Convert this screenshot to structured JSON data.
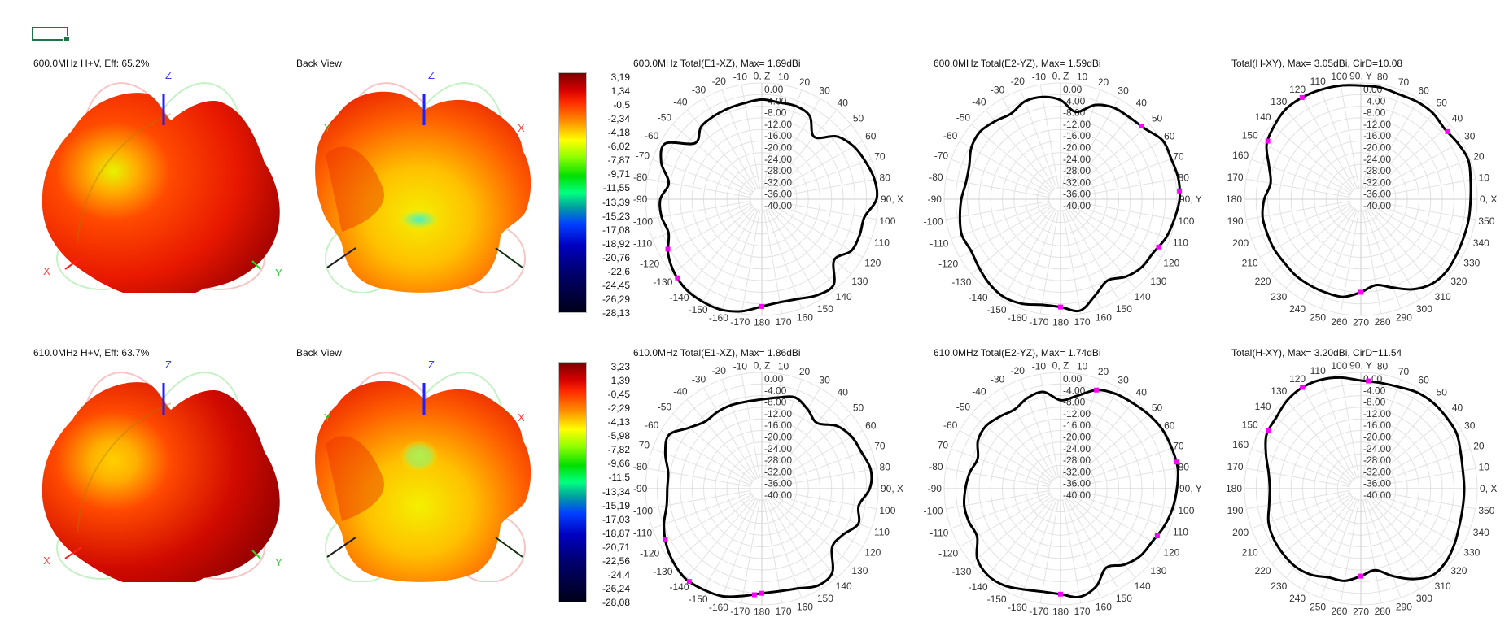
{
  "colors": {
    "curve": "#000000",
    "marker": "#ff00ff",
    "grid": "#e0e0e0",
    "axis_x": "#ff3030",
    "axis_y": "#20d020",
    "axis_z": "#2020ff",
    "selection": "#217346"
  },
  "rows": [
    {
      "view3d": {
        "title": "600.0MHz H+V, Eff: 65.2%",
        "back_title": "Back View",
        "axis_labels": {
          "x": "X",
          "y": "Y",
          "z": "Z"
        }
      },
      "colorbar": {
        "labels": [
          "3,19",
          "1,34",
          "-0,5",
          "-2,34",
          "-4,18",
          "-6,02",
          "-7,87",
          "-9,71",
          "-11,55",
          "-13,39",
          "-15,23",
          "-17,08",
          "-18,92",
          "-20,76",
          "-22,6",
          "-24,45",
          "-26,29",
          "-28,13"
        ]
      }
    },
    {
      "view3d": {
        "title": "610.0MHz H+V, Eff: 63.7%",
        "back_title": "Back View",
        "axis_labels": {
          "x": "X",
          "y": "Y",
          "z": "Z"
        }
      },
      "colorbar": {
        "labels": [
          "3,23",
          "1,39",
          "-0,45",
          "-2,29",
          "-4,13",
          "-5,98",
          "-7,82",
          "-9,66",
          "-11,5",
          "-13,34",
          "-15,19",
          "-17,03",
          "-18,87",
          "-20,71",
          "-22,56",
          "-24,4",
          "-26,24",
          "-28,08"
        ]
      }
    }
  ],
  "chart_data": [
    {
      "type": "line",
      "coordinate_system": "polar",
      "zero_direction": "top",
      "direction": "clockwise",
      "title": "600.0MHz Total(E1-XZ), Max= 1.69dBi",
      "r_range": [
        -40,
        0
      ],
      "r_tick_labels": [
        "0.00",
        "-4.00",
        "-8.00",
        "-12.00",
        "-16.00",
        "-20.00",
        "-24.00",
        "-28.00",
        "-32.00",
        "-36.00",
        "-40.00"
      ],
      "angle_tick_labels": [
        "0, Z",
        "10",
        "20",
        "30",
        "40",
        "50",
        "60",
        "70",
        "80",
        "90, X",
        "100",
        "110",
        "120",
        "130",
        "140",
        "150",
        "160",
        "170",
        "180",
        "-170",
        "-160",
        "-150",
        "-140",
        "-130",
        "-120",
        "-110",
        "-100",
        "-90",
        "-80",
        "-70",
        "-60",
        "-50",
        "-40",
        "-30",
        "-20",
        "-10"
      ],
      "angles": [
        0,
        10,
        20,
        30,
        40,
        50,
        60,
        70,
        80,
        90,
        100,
        110,
        120,
        130,
        140,
        150,
        160,
        170,
        180,
        -170,
        -160,
        -150,
        -140,
        -130,
        -120,
        -110,
        -100,
        -90,
        -80,
        -70,
        -60,
        -50,
        -40,
        -30,
        -20,
        -10
      ],
      "values": [
        -5.7,
        -6.2,
        -5.9,
        -7,
        -12,
        -6.4,
        -3.6,
        -2.1,
        -0.7,
        -0.6,
        -4.2,
        -4.2,
        -4.5,
        -7.5,
        -1.6,
        -1.9,
        -3.5,
        -4,
        -3.1,
        -0.9,
        0.5,
        0.7,
        0.5,
        -0.7,
        -2.8,
        -5.9,
        -5,
        -5.1,
        -7.5,
        -3.2,
        -1.7,
        -10,
        -7.5,
        -7,
        -6.7,
        -6.4
      ],
      "markers": [
        -118,
        -133,
        180
      ],
      "grid": true
    },
    {
      "type": "line",
      "coordinate_system": "polar",
      "zero_direction": "top",
      "direction": "clockwise",
      "title": "600.0MHz Total(E2-YZ), Max= 1.59dBi",
      "r_range": [
        -40,
        0
      ],
      "r_tick_labels": [
        "0.00",
        "-4.00",
        "-8.00",
        "-12.00",
        "-16.00",
        "-20.00",
        "-24.00",
        "-28.00",
        "-32.00",
        "-36.00",
        "-40.00"
      ],
      "angle_tick_labels": [
        "0, Z",
        "10",
        "20",
        "30",
        "40",
        "50",
        "60",
        "70",
        "80",
        "90, Y",
        "100",
        "110",
        "120",
        "130",
        "140",
        "150",
        "160",
        "170",
        "180",
        "-170",
        "-160",
        "-150",
        "-140",
        "-130",
        "-120",
        "-110",
        "-100",
        "-90",
        "-80",
        "-70",
        "-60",
        "-50",
        "-40",
        "-30",
        "-20",
        "-10"
      ],
      "angles": [
        0,
        10,
        20,
        30,
        40,
        50,
        60,
        70,
        80,
        90,
        100,
        110,
        120,
        130,
        140,
        150,
        160,
        170,
        180,
        -170,
        -160,
        -150,
        -140,
        -130,
        -120,
        -110,
        -100,
        -90,
        -80,
        -70,
        -60,
        -50,
        -40,
        -30,
        -20,
        -10
      ],
      "values": [
        -5.9,
        -9.5,
        -5.5,
        -3.6,
        -3.2,
        -2.2,
        0.5,
        0.5,
        1.1,
        0.9,
        -0.3,
        -1.4,
        -3.2,
        -3.6,
        -5.2,
        -7.7,
        -4.9,
        -1.1,
        -2.9,
        -3.1,
        -1.7,
        -1.1,
        -2,
        -3.4,
        -4.5,
        -3.9,
        -4.9,
        -5.9,
        -7,
        -6.6,
        -4.6,
        -3.9,
        -5,
        -6,
        -4.2,
        -4.3
      ],
      "markers": [
        48,
        86,
        116,
        180
      ],
      "grid": true
    },
    {
      "type": "line",
      "coordinate_system": "polar",
      "zero_direction": "right",
      "direction": "counterclockwise",
      "title": "Total(H-XY), Max= 3.05dBi, CirD=10.08",
      "r_range": [
        -40,
        0
      ],
      "r_tick_labels": [
        "0.00",
        "-4.00",
        "-8.00",
        "-12.00",
        "-16.00",
        "-20.00",
        "-24.00",
        "-28.00",
        "-32.00",
        "-36.00",
        "-40.00"
      ],
      "angle_tick_labels": [
        "0, X",
        "10",
        "20",
        "30",
        "40",
        "50",
        "60",
        "70",
        "80",
        "90, Y",
        "100",
        "110",
        "120",
        "130",
        "140",
        "150",
        "160",
        "170",
        "180",
        "190",
        "200",
        "210",
        "220",
        "230",
        "240",
        "250",
        "260",
        "270",
        "280",
        "290",
        "300",
        "310",
        "320",
        "330",
        "340",
        "350"
      ],
      "angles": [
        0,
        10,
        20,
        30,
        40,
        50,
        60,
        70,
        80,
        90,
        100,
        110,
        120,
        130,
        140,
        150,
        160,
        170,
        180,
        190,
        200,
        210,
        220,
        230,
        240,
        250,
        260,
        270,
        280,
        290,
        300,
        310,
        320,
        330,
        340,
        350
      ],
      "values": [
        -2.3,
        -1.7,
        -0.7,
        -1.5,
        -2.4,
        -1.4,
        -1.3,
        -1.6,
        -1,
        -0.9,
        -0.3,
        0.1,
        0.4,
        0.3,
        -1,
        -2.6,
        -6.4,
        -8.5,
        -6.8,
        -5.7,
        -5.7,
        -5.6,
        -5.8,
        -5.5,
        -5.6,
        -5.7,
        -5.9,
        -8,
        -10,
        -7.6,
        -4.2,
        -2,
        -1.5,
        -2,
        -2.3,
        -2.3
      ],
      "markers": [
        38,
        120,
        148,
        270
      ],
      "grid": true
    },
    {
      "type": "line",
      "coordinate_system": "polar",
      "zero_direction": "top",
      "direction": "clockwise",
      "title": "610.0MHz Total(E1-XZ), Max= 1.86dBi",
      "r_range": [
        -40,
        0
      ],
      "r_tick_labels": [
        "0.00",
        "-4.00",
        "-8.00",
        "-12.00",
        "-16.00",
        "-20.00",
        "-24.00",
        "-28.00",
        "-32.00",
        "-36.00",
        "-40.00"
      ],
      "angle_tick_labels": [
        "0, Z",
        "10",
        "20",
        "30",
        "40",
        "50",
        "60",
        "70",
        "80",
        "90, X",
        "100",
        "110",
        "120",
        "130",
        "140",
        "150",
        "160",
        "170",
        "180",
        "-170",
        "-160",
        "-150",
        "-140",
        "-130",
        "-120",
        "-110",
        "-100",
        "-90",
        "-80",
        "-70",
        "-60",
        "-50",
        "-40",
        "-30",
        "-20",
        "-10"
      ],
      "angles": [
        0,
        10,
        20,
        30,
        40,
        50,
        60,
        70,
        80,
        90,
        100,
        110,
        120,
        130,
        140,
        150,
        160,
        170,
        180,
        -170,
        -160,
        -150,
        -140,
        -130,
        -120,
        -110,
        -100,
        -90,
        -80,
        -70,
        -60,
        -50,
        -40,
        -30,
        -20,
        -10
      ],
      "values": [
        -9.3,
        -8.2,
        -6.6,
        -8.5,
        -10.5,
        -6.4,
        -4.3,
        -3.5,
        -2,
        -2.9,
        -6.2,
        -4.7,
        -8,
        -8.5,
        -2.3,
        -1.5,
        -3.5,
        -4.2,
        -4,
        -2.5,
        -0.6,
        0.1,
        0.6,
        -0.4,
        -2,
        -4.2,
        -6.8,
        -7.5,
        -7.3,
        -4.7,
        -3.1,
        -7.4,
        -9.8,
        -9.5,
        -9.4,
        -9.6
      ],
      "markers": [
        -118,
        -142,
        -176,
        180
      ],
      "grid": true
    },
    {
      "type": "line",
      "coordinate_system": "polar",
      "zero_direction": "top",
      "direction": "clockwise",
      "title": "610.0MHz Total(E2-YZ), Max= 1.74dBi",
      "r_range": [
        -40,
        0
      ],
      "r_tick_labels": [
        "0.00",
        "-4.00",
        "-8.00",
        "-12.00",
        "-16.00",
        "-20.00",
        "-24.00",
        "-28.00",
        "-32.00",
        "-36.00",
        "-40.00"
      ],
      "angle_tick_labels": [
        "0, Z",
        "10",
        "20",
        "30",
        "40",
        "50",
        "60",
        "70",
        "80",
        "90, Y",
        "100",
        "110",
        "120",
        "130",
        "140",
        "150",
        "160",
        "170",
        "180",
        "-170",
        "-160",
        "-150",
        "-140",
        "-130",
        "-120",
        "-110",
        "-100",
        "-90",
        "-80",
        "-70",
        "-60",
        "-50",
        "-40",
        "-30",
        "-20",
        "-10"
      ],
      "angles": [
        0,
        10,
        20,
        30,
        40,
        50,
        60,
        70,
        80,
        90,
        100,
        110,
        120,
        130,
        140,
        150,
        160,
        170,
        180,
        -170,
        -160,
        -150,
        -140,
        -130,
        -120,
        -110,
        -100,
        -90,
        -80,
        -70,
        -60,
        -50,
        -40,
        -30,
        -20,
        -10
      ],
      "values": [
        -9.6,
        -7.6,
        -3.9,
        -2.3,
        -1.5,
        -0.4,
        0.5,
        0.7,
        0.9,
        0,
        -0.9,
        -2.1,
        -3.6,
        -4.1,
        -5.9,
        -8.6,
        -4.2,
        -2.2,
        -3.7,
        -4,
        -3.1,
        -1.5,
        -1.1,
        -2.6,
        -6.9,
        -6.5,
        -6.4,
        -7.3,
        -8.3,
        -9.7,
        -7.2,
        -6.5,
        -7.6,
        -8.5,
        -6.8,
        -6.2
      ],
      "markers": [
        20,
        77,
        116,
        180
      ],
      "grid": true
    },
    {
      "type": "line",
      "coordinate_system": "polar",
      "zero_direction": "right",
      "direction": "counterclockwise",
      "title": "Total(H-XY), Max= 3.20dBi, CirD=11.54",
      "r_range": [
        -40,
        0
      ],
      "r_tick_labels": [
        "0.00",
        "-4.00",
        "-8.00",
        "-12.00",
        "-16.00",
        "-20.00",
        "-24.00",
        "-28.00",
        "-32.00",
        "-36.00",
        "-40.00"
      ],
      "angle_tick_labels": [
        "0, X",
        "10",
        "20",
        "30",
        "40",
        "50",
        "60",
        "70",
        "80",
        "90, Y",
        "100",
        "110",
        "120",
        "130",
        "140",
        "150",
        "160",
        "170",
        "180",
        "190",
        "200",
        "210",
        "220",
        "230",
        "240",
        "250",
        "260",
        "270",
        "280",
        "290",
        "300",
        "310",
        "320",
        "330",
        "340",
        "350"
      ],
      "angles": [
        0,
        10,
        20,
        30,
        40,
        50,
        60,
        70,
        80,
        90,
        100,
        110,
        120,
        130,
        140,
        150,
        160,
        170,
        180,
        190,
        200,
        210,
        220,
        230,
        240,
        250,
        260,
        270,
        280,
        290,
        300,
        310,
        320,
        330,
        340,
        350
      ],
      "values": [
        -4.5,
        -4.4,
        -3.5,
        -2,
        -1.7,
        -1.4,
        -1.7,
        -2.7,
        -3,
        -2.8,
        -1.2,
        -0.1,
        0.2,
        -0.5,
        -2,
        -2.6,
        -5.3,
        -7.8,
        -8.7,
        -8,
        -6.2,
        -5.4,
        -5.1,
        -5,
        -5.8,
        -7.5,
        -7.8,
        -9.9,
        -11.5,
        -8,
        -4.1,
        -1.3,
        -1.5,
        -2.7,
        -3.9,
        -4.4
      ],
      "markers": [
        86,
        120,
        148,
        270
      ],
      "grid": true
    }
  ]
}
